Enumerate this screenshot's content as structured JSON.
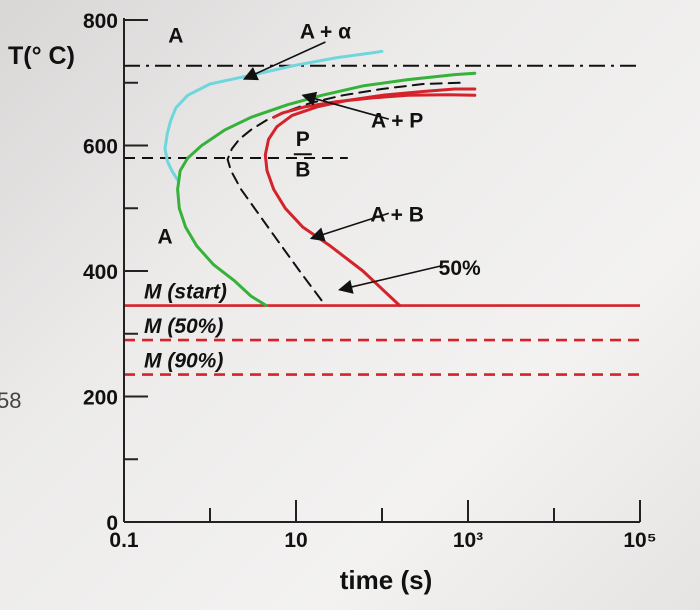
{
  "page": {
    "edge_number": "58"
  },
  "chart_data": {
    "type": "line",
    "title": "",
    "xlabel": "time (s)",
    "ylabel": "T(° C)",
    "x_scale": "log",
    "xlim": [
      0.1,
      100000
    ],
    "ylim": [
      0,
      800
    ],
    "x_ticks": [
      {
        "value": 0.1,
        "label": "0.1"
      },
      {
        "value": 10,
        "label": "10"
      },
      {
        "value": 1000,
        "label": "10³"
      },
      {
        "value": 100000,
        "label": "10⁵"
      }
    ],
    "x_minor_ticks": [
      1,
      100,
      10000
    ],
    "y_ticks": [
      {
        "value": 0,
        "label": "0"
      },
      {
        "value": 200,
        "label": "200"
      },
      {
        "value": 400,
        "label": "400"
      },
      {
        "value": 600,
        "label": "600"
      },
      {
        "value": 800,
        "label": "800"
      }
    ],
    "y_minor_ticks": [
      100,
      300,
      500,
      700
    ],
    "grid": false,
    "series": [
      {
        "style": "solid",
        "color": "#6fd6dc",
        "x": [
          100,
          80,
          30,
          10,
          3,
          1,
          0.55,
          0.4,
          0.35,
          0.32,
          0.3,
          0.32,
          0.36,
          0.42
        ],
        "y": [
          750,
          748,
          740,
          728,
          712,
          698,
          680,
          660,
          640,
          620,
          595,
          575,
          560,
          545
        ]
      },
      {
        "style": "solid",
        "color": "#36b23a",
        "x": [
          1200,
          700,
          200,
          60,
          20,
          8,
          3,
          1.5,
          0.8,
          0.55,
          0.45,
          0.42,
          0.44,
          0.52,
          0.7,
          1.1,
          1.9,
          3,
          4.5
        ],
        "y": [
          715,
          713,
          705,
          695,
          680,
          665,
          645,
          625,
          600,
          580,
          560,
          530,
          500,
          470,
          440,
          410,
          385,
          360,
          345
        ]
      },
      {
        "style": "dashed",
        "color": "#111111",
        "x": [
          800,
          300,
          100,
          35,
          15,
          8,
          4.5,
          3,
          2.2,
          1.8,
          1.6,
          1.75,
          2.3,
          3.5,
          6,
          11,
          22
        ],
        "y": [
          700,
          698,
          690,
          680,
          668,
          655,
          640,
          625,
          610,
          595,
          578,
          560,
          530,
          495,
          450,
          400,
          345
        ]
      },
      {
        "style": "solid",
        "color": "#d4232a",
        "x": [
          1200,
          700,
          300,
          100,
          40,
          18,
          9,
          6,
          4.8,
          4.4,
          4.6,
          5.5,
          7.5,
          12,
          25,
          60,
          160
        ],
        "y": [
          690,
          690,
          686,
          680,
          672,
          662,
          648,
          630,
          610,
          585,
          560,
          530,
          500,
          470,
          440,
          400,
          345
        ]
      },
      {
        "style": "solid",
        "color": "#d4232a",
        "x": [
          1200,
          600,
          200,
          80,
          30,
          13,
          7,
          5.5
        ],
        "y": [
          680,
          681,
          680,
          676,
          670,
          662,
          652,
          645
        ]
      }
    ],
    "reference_lines": [
      {
        "label": "",
        "y": 727,
        "style": "dashdot",
        "color": "#111111",
        "x_start": 0.1,
        "x_end": 100000
      },
      {
        "label": "",
        "y": 580,
        "style": "dashed",
        "color": "#111111",
        "x_start": 0.1,
        "x_end": 40
      },
      {
        "label": "M (start)",
        "y": 345,
        "style": "solid",
        "color": "#d4232a",
        "x_start": 0.1,
        "x_end": 100000
      },
      {
        "label": "M (50%)",
        "y": 290,
        "style": "dashed",
        "color": "#d4232a",
        "x_start": 0.1,
        "x_end": 100000
      },
      {
        "label": "M (90%)",
        "y": 235,
        "style": "dashed",
        "color": "#d4232a",
        "x_start": 0.1,
        "x_end": 100000
      }
    ],
    "annotations": [
      {
        "text": "A",
        "x": 0.4,
        "y": 775
      },
      {
        "text": "A + α",
        "x": 22,
        "y": 782
      },
      {
        "text": "A + P",
        "x": 150,
        "y": 640
      },
      {
        "text": "P",
        "x": 12,
        "y": 610
      },
      {
        "text": "B",
        "x": 12,
        "y": 562
      },
      {
        "text": "A + B",
        "x": 150,
        "y": 490
      },
      {
        "text": "A",
        "x": 0.3,
        "y": 455
      },
      {
        "text": "50%",
        "x": 800,
        "y": 405
      }
    ],
    "arrows": [
      {
        "from": [
          22,
          765
        ],
        "to": [
          2.5,
          706
        ]
      },
      {
        "from": [
          120,
          642
        ],
        "to": [
          12,
          680
        ]
      },
      {
        "from": [
          120,
          492
        ],
        "to": [
          15,
          452
        ]
      },
      {
        "from": [
          480,
          408
        ],
        "to": [
          32,
          370
        ]
      }
    ]
  }
}
